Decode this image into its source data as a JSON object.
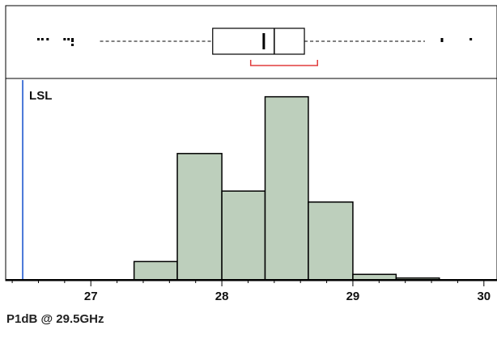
{
  "chart_data": {
    "type": "histogram",
    "xlabel": "P1dB @ 29.5GHz",
    "xlim": [
      26.35,
      30.1
    ],
    "ylim": [
      0,
      220
    ],
    "x_ticks": [
      27,
      28,
      29,
      30
    ],
    "lsl": {
      "label": "LSL",
      "value": 26.48,
      "color": "#4a78d8"
    },
    "bins": [
      {
        "x0": 27.33,
        "x1": 27.66,
        "count": 20
      },
      {
        "x0": 27.66,
        "x1": 28.0,
        "count": 138
      },
      {
        "x0": 28.0,
        "x1": 28.33,
        "count": 97
      },
      {
        "x0": 28.33,
        "x1": 28.66,
        "count": 200
      },
      {
        "x0": 28.66,
        "x1": 29.0,
        "count": 85
      },
      {
        "x0": 29.0,
        "x1": 29.33,
        "count": 6
      },
      {
        "x0": 29.33,
        "x1": 29.66,
        "count": 2
      }
    ],
    "boxplot": {
      "min": 27.07,
      "q1": 27.93,
      "median": 28.4,
      "mean": 28.32,
      "q3": 28.63,
      "max": 29.55,
      "shortest_half": [
        28.22,
        28.73
      ],
      "outliers": [
        26.6,
        26.63,
        26.67,
        26.8,
        26.83,
        26.86,
        26.86,
        26.86,
        29.68,
        29.68,
        29.9
      ]
    },
    "colors": {
      "bar_fill": "#bdcfbc",
      "bar_stroke": "#000000",
      "shortest_half": "#e03c3c",
      "frame": "#000000"
    }
  }
}
